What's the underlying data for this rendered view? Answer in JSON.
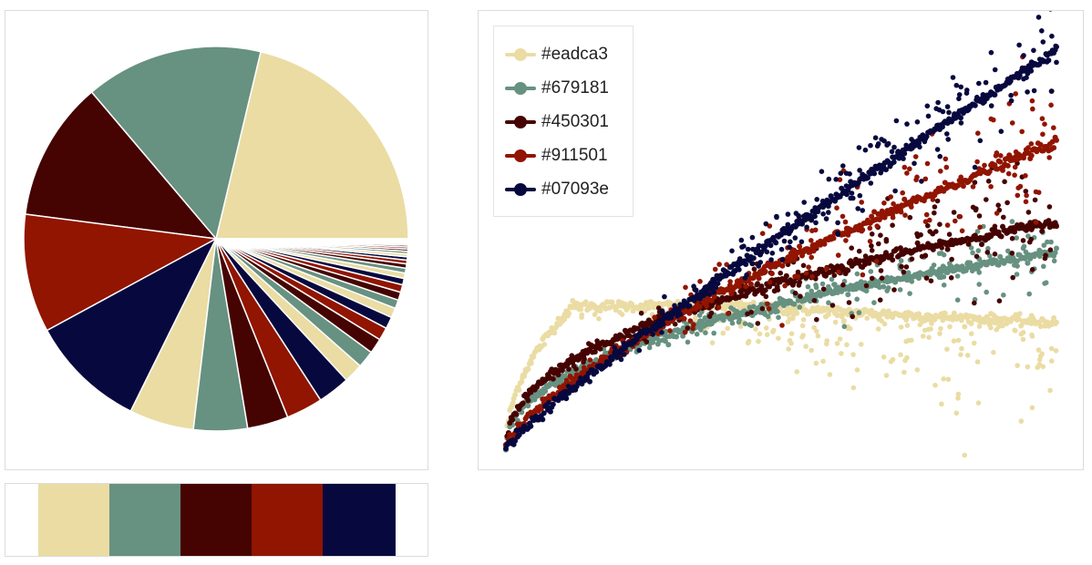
{
  "palette": [
    "#eadca3",
    "#679181",
    "#450301",
    "#911501",
    "#07093e"
  ],
  "chart_data": [
    {
      "type": "pie",
      "colors": [
        "#eadca3",
        "#679181",
        "#450301",
        "#911501",
        "#07093e"
      ],
      "values": [
        23.5,
        16.5,
        13.0,
        11.0,
        10.8,
        6.0,
        5.0,
        3.8,
        3.4,
        3.0,
        1.8,
        1.6,
        1.4,
        1.2,
        1.1,
        0.9,
        0.8,
        0.75,
        0.7,
        0.6,
        0.5,
        0.45,
        0.4,
        0.35,
        0.3,
        0.27,
        0.24,
        0.21,
        0.19,
        0.17,
        0.15,
        0.13,
        0.11,
        0.1,
        0.09
      ]
    },
    {
      "type": "scatter",
      "legend": "top-left",
      "grid": false,
      "xlim": [
        0,
        1
      ],
      "ylim": [
        0,
        1
      ],
      "series": [
        {
          "name": "#eadca3",
          "color": "#eadca3",
          "trend": "flat",
          "start": 0.0,
          "plateau": 0.34,
          "end": 0.3,
          "spread_end": 0.1
        },
        {
          "name": "#679181",
          "color": "#679181",
          "trend": "sqrt",
          "start": 0.0,
          "end": 0.47,
          "spread_end": 0.05
        },
        {
          "name": "#450301",
          "color": "#450301",
          "trend": "sqrt",
          "start": 0.0,
          "end": 0.54,
          "spread_end": 0.09
        },
        {
          "name": "#911501",
          "color": "#911501",
          "trend": "linear-ish",
          "start": 0.0,
          "end": 0.73,
          "spread_end": 0.1
        },
        {
          "name": "#07093e",
          "color": "#07093e",
          "trend": "linear",
          "start": 0.0,
          "end": 0.95,
          "spread_end": 0.07
        }
      ]
    }
  ]
}
